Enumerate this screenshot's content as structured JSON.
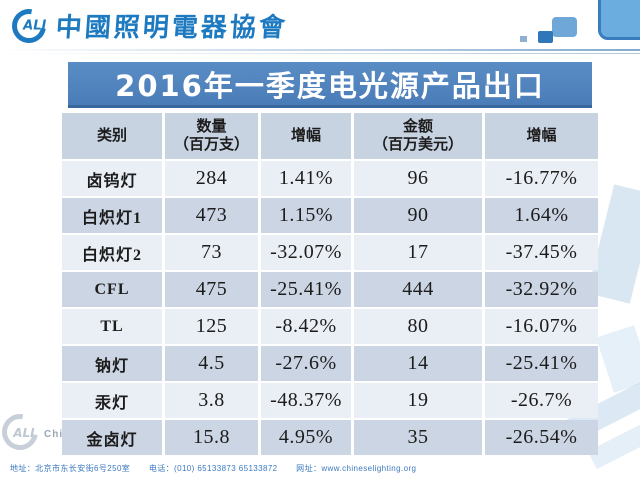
{
  "colors": {
    "accent_blue": "#4f81bd",
    "logo_blue": "#1e7ac0",
    "header_row_bg": "#c8d3e2",
    "row_light_bg": "#eaeef5",
    "row_dark_bg": "#ccd5e3",
    "footer_text_blue": "#3b79c0"
  },
  "icons": {
    "logo_mark": "cali-ring-logo",
    "watermark_mark": "cali-ring-logo-faded"
  },
  "logo": {
    "mark_text": "ALI",
    "org_name": "中國照明電器協會"
  },
  "title": "2016年一季度电光源产品出口",
  "table": {
    "headers": [
      {
        "line1": "类别",
        "line2": ""
      },
      {
        "line1": "数量",
        "line2": "（百万支）"
      },
      {
        "line1": "增幅",
        "line2": ""
      },
      {
        "line1": "金额",
        "line2": "（百万美元）"
      },
      {
        "line1": "增幅",
        "line2": ""
      }
    ],
    "rows": [
      [
        "卤钨灯",
        "284",
        "1.41%",
        "96",
        "-16.77%"
      ],
      [
        "白炽灯1",
        "473",
        "1.15%",
        "90",
        "1.64%"
      ],
      [
        "白炽灯2",
        "73",
        "-32.07%",
        "17",
        "-37.45%"
      ],
      [
        "CFL",
        "475",
        "-25.41%",
        "444",
        "-32.92%"
      ],
      [
        "TL",
        "125",
        "-8.42%",
        "80",
        "-16.07%"
      ],
      [
        "钠灯",
        "4.5",
        "-27.6%",
        "14",
        "-25.41%"
      ],
      [
        "汞灯",
        "3.8",
        "-48.37%",
        "19",
        "-26.7%"
      ],
      [
        "金卤灯",
        "15.8",
        "4.95%",
        "35",
        "-26.54%"
      ]
    ]
  },
  "watermark": {
    "mark_text": "ALI",
    "text_fragment": "Chi"
  },
  "footer": {
    "address": "地址：北京市东长安街6号250室",
    "phone": "电话：(010) 65133873 65133872",
    "website": "网址：www.chineselighting.org"
  }
}
